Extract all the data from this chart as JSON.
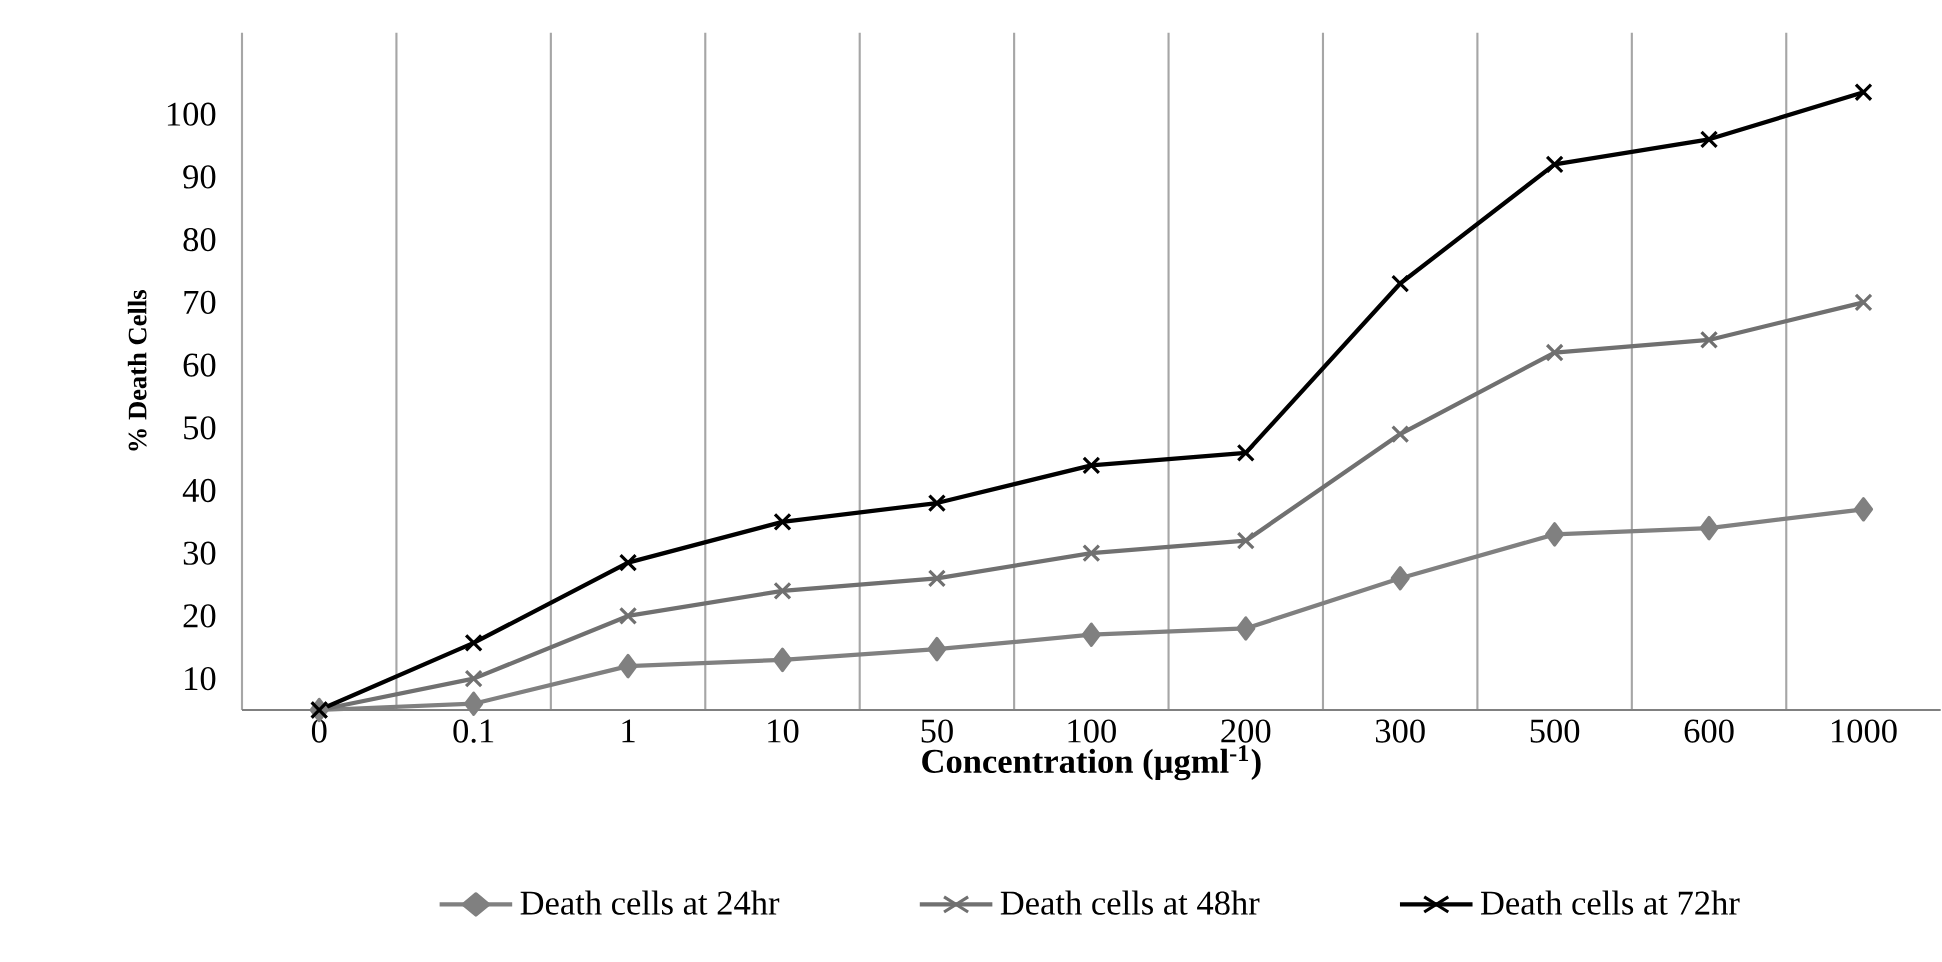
{
  "chart_data": {
    "type": "line",
    "xlabel": "Concentration (µgml$^{-1}$)",
    "ylabel": "% Death Cells",
    "categories": [
      "0",
      "0.1",
      "1",
      "10",
      "50",
      "100",
      "200",
      "300",
      "500",
      "600",
      "1000"
    ],
    "series": [
      {
        "name": "Death cells at 24hr",
        "color": "#808080",
        "marker": "diamond",
        "values": [
          5,
          6,
          12,
          13,
          14.7,
          17,
          18,
          26,
          33,
          34,
          37
        ]
      },
      {
        "name": "Death cells at 48hr",
        "color": "#707070",
        "marker": "cross",
        "values": [
          5,
          10,
          20,
          24,
          26,
          30,
          32,
          49,
          62,
          64,
          70
        ]
      },
      {
        "name": "Death cells at 72hr",
        "color": "#000000",
        "marker": "cross",
        "values": [
          5,
          15.7,
          28.5,
          35,
          38,
          44,
          46,
          73,
          92,
          96,
          103.5
        ]
      }
    ],
    "ylim": [
      5,
      113
    ],
    "yticks": [
      10,
      20,
      30,
      40,
      50,
      60,
      70,
      80,
      90,
      100
    ],
    "grid": "x",
    "legend": "bottom",
    "line_style": "solid"
  }
}
